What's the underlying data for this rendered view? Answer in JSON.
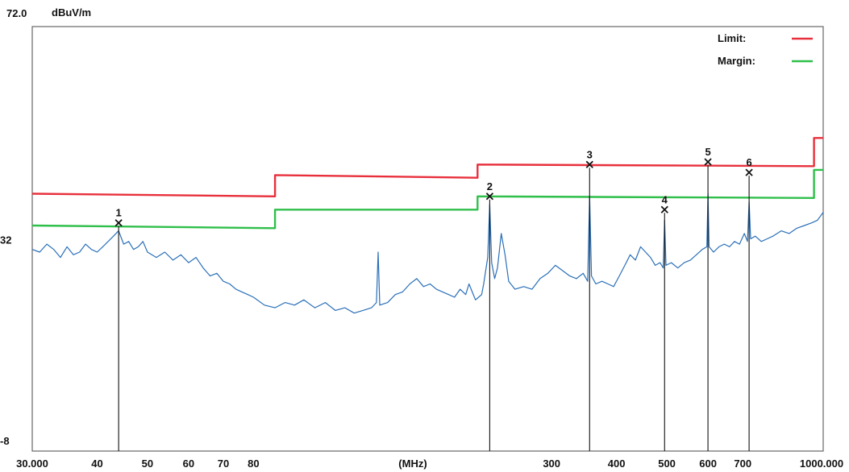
{
  "chart_data": {
    "type": "line",
    "title": "",
    "ylabel": "dBuV/m",
    "xlabel": "(MHz)",
    "x_scale": "log",
    "xlim": [
      30,
      1000
    ],
    "ylim": [
      -8,
      72
    ],
    "y_tick_labels": [
      "72.0",
      "32",
      "-8"
    ],
    "y_tick_values": [
      72,
      32,
      -8
    ],
    "x_tick_labels": [
      "30.000",
      "40",
      "50",
      "60",
      "70",
      "80",
      "300",
      "400",
      "500",
      "600",
      "700",
      "1000.000"
    ],
    "x_tick_values": [
      30,
      40,
      50,
      60,
      70,
      80,
      300,
      400,
      500,
      600,
      700,
      1000
    ],
    "grid": false,
    "legend_position": "top-right",
    "series": [
      {
        "name": "Limit:",
        "color": "#e8303c",
        "step": true,
        "points": [
          [
            30,
            40.5
          ],
          [
            88,
            40.0
          ],
          [
            88,
            44.0
          ],
          [
            216,
            43.5
          ],
          [
            216,
            46.0
          ],
          [
            960,
            45.7
          ],
          [
            960,
            51.0
          ],
          [
            1000,
            51.0
          ]
        ]
      },
      {
        "name": "Margin:",
        "color": "#2fbf4a",
        "step": true,
        "points": [
          [
            30,
            34.5
          ],
          [
            88,
            34.0
          ],
          [
            88,
            37.5
          ],
          [
            216,
            37.5
          ],
          [
            216,
            40.0
          ],
          [
            960,
            39.7
          ],
          [
            960,
            45.0
          ],
          [
            1000,
            45.0
          ]
        ]
      },
      {
        "name": "",
        "color": "#2a6fb8",
        "points": [
          [
            30,
            30.0
          ],
          [
            31,
            29.5
          ],
          [
            32,
            31.0
          ],
          [
            33,
            30.0
          ],
          [
            34,
            28.5
          ],
          [
            35,
            30.5
          ],
          [
            36,
            29.0
          ],
          [
            37,
            29.5
          ],
          [
            38,
            31.0
          ],
          [
            39,
            30.0
          ],
          [
            40,
            29.5
          ],
          [
            41,
            30.5
          ],
          [
            42,
            31.5
          ],
          [
            43,
            32.5
          ],
          [
            44,
            33.5
          ],
          [
            45,
            31.0
          ],
          [
            46,
            31.5
          ],
          [
            47,
            30.0
          ],
          [
            48,
            30.5
          ],
          [
            49,
            31.5
          ],
          [
            50,
            29.5
          ],
          [
            52,
            28.5
          ],
          [
            54,
            29.5
          ],
          [
            56,
            28.0
          ],
          [
            58,
            29.0
          ],
          [
            60,
            27.5
          ],
          [
            62,
            28.5
          ],
          [
            64,
            26.5
          ],
          [
            66,
            25.0
          ],
          [
            68,
            25.5
          ],
          [
            70,
            24.0
          ],
          [
            72,
            23.5
          ],
          [
            74,
            22.5
          ],
          [
            76,
            22.0
          ],
          [
            78,
            21.5
          ],
          [
            80,
            21.0
          ],
          [
            84,
            19.5
          ],
          [
            88,
            19.0
          ],
          [
            92,
            20.0
          ],
          [
            96,
            19.5
          ],
          [
            100,
            20.5
          ],
          [
            105,
            19.0
          ],
          [
            110,
            20.0
          ],
          [
            115,
            18.5
          ],
          [
            120,
            19.0
          ],
          [
            125,
            18.0
          ],
          [
            130,
            18.5
          ],
          [
            135,
            19.0
          ],
          [
            138,
            20.0
          ],
          [
            139,
            29.5
          ],
          [
            140,
            19.5
          ],
          [
            145,
            20.0
          ],
          [
            150,
            21.5
          ],
          [
            155,
            22.0
          ],
          [
            160,
            23.5
          ],
          [
            165,
            24.5
          ],
          [
            170,
            23.0
          ],
          [
            175,
            23.5
          ],
          [
            180,
            22.5
          ],
          [
            185,
            22.0
          ],
          [
            190,
            21.5
          ],
          [
            195,
            21.0
          ],
          [
            200,
            22.5
          ],
          [
            205,
            21.5
          ],
          [
            208,
            23.5
          ],
          [
            211,
            22.0
          ],
          [
            214,
            20.5
          ],
          [
            217,
            21.0
          ],
          [
            220,
            21.5
          ],
          [
            222,
            23.5
          ],
          [
            224,
            26.0
          ],
          [
            226,
            28.5
          ],
          [
            228,
            38.5
          ],
          [
            230,
            27.5
          ],
          [
            233,
            24.5
          ],
          [
            236,
            26.5
          ],
          [
            240,
            33.0
          ],
          [
            244,
            29.0
          ],
          [
            248,
            24.0
          ],
          [
            255,
            22.5
          ],
          [
            265,
            23.0
          ],
          [
            275,
            22.5
          ],
          [
            285,
            24.5
          ],
          [
            295,
            25.5
          ],
          [
            305,
            27.0
          ],
          [
            315,
            26.0
          ],
          [
            325,
            25.0
          ],
          [
            335,
            24.5
          ],
          [
            345,
            25.5
          ],
          [
            352,
            24.0
          ],
          [
            355,
            40.0
          ],
          [
            358,
            25.0
          ],
          [
            365,
            23.5
          ],
          [
            375,
            24.0
          ],
          [
            385,
            23.5
          ],
          [
            395,
            23.0
          ],
          [
            405,
            25.0
          ],
          [
            415,
            27.0
          ],
          [
            425,
            29.0
          ],
          [
            435,
            28.0
          ],
          [
            445,
            30.5
          ],
          [
            455,
            29.5
          ],
          [
            465,
            28.5
          ],
          [
            475,
            27.0
          ],
          [
            485,
            27.5
          ],
          [
            492,
            26.5
          ],
          [
            495,
            35.5
          ],
          [
            498,
            27.0
          ],
          [
            510,
            27.5
          ],
          [
            525,
            26.5
          ],
          [
            540,
            27.5
          ],
          [
            555,
            28.0
          ],
          [
            570,
            29.0
          ],
          [
            585,
            30.0
          ],
          [
            597,
            30.5
          ],
          [
            600,
            40.5
          ],
          [
            603,
            30.5
          ],
          [
            615,
            29.5
          ],
          [
            630,
            30.5
          ],
          [
            645,
            31.0
          ],
          [
            660,
            30.5
          ],
          [
            675,
            31.5
          ],
          [
            690,
            31.0
          ],
          [
            705,
            33.0
          ],
          [
            715,
            31.5
          ],
          [
            720,
            39.0
          ],
          [
            725,
            32.0
          ],
          [
            740,
            32.5
          ],
          [
            760,
            31.5
          ],
          [
            780,
            32.0
          ],
          [
            800,
            32.5
          ],
          [
            830,
            33.5
          ],
          [
            860,
            33.0
          ],
          [
            890,
            34.0
          ],
          [
            920,
            34.5
          ],
          [
            950,
            35.0
          ],
          [
            975,
            35.5
          ],
          [
            1000,
            37.0
          ]
        ]
      }
    ],
    "markers": [
      {
        "label": "1",
        "x": 44,
        "y": 35.0
      },
      {
        "label": "2",
        "x": 228,
        "y": 40.0
      },
      {
        "label": "3",
        "x": 355,
        "y": 46.0
      },
      {
        "label": "4",
        "x": 495,
        "y": 37.5
      },
      {
        "label": "5",
        "x": 600,
        "y": 46.5
      },
      {
        "label": "6",
        "x": 720,
        "y": 44.5
      }
    ]
  }
}
